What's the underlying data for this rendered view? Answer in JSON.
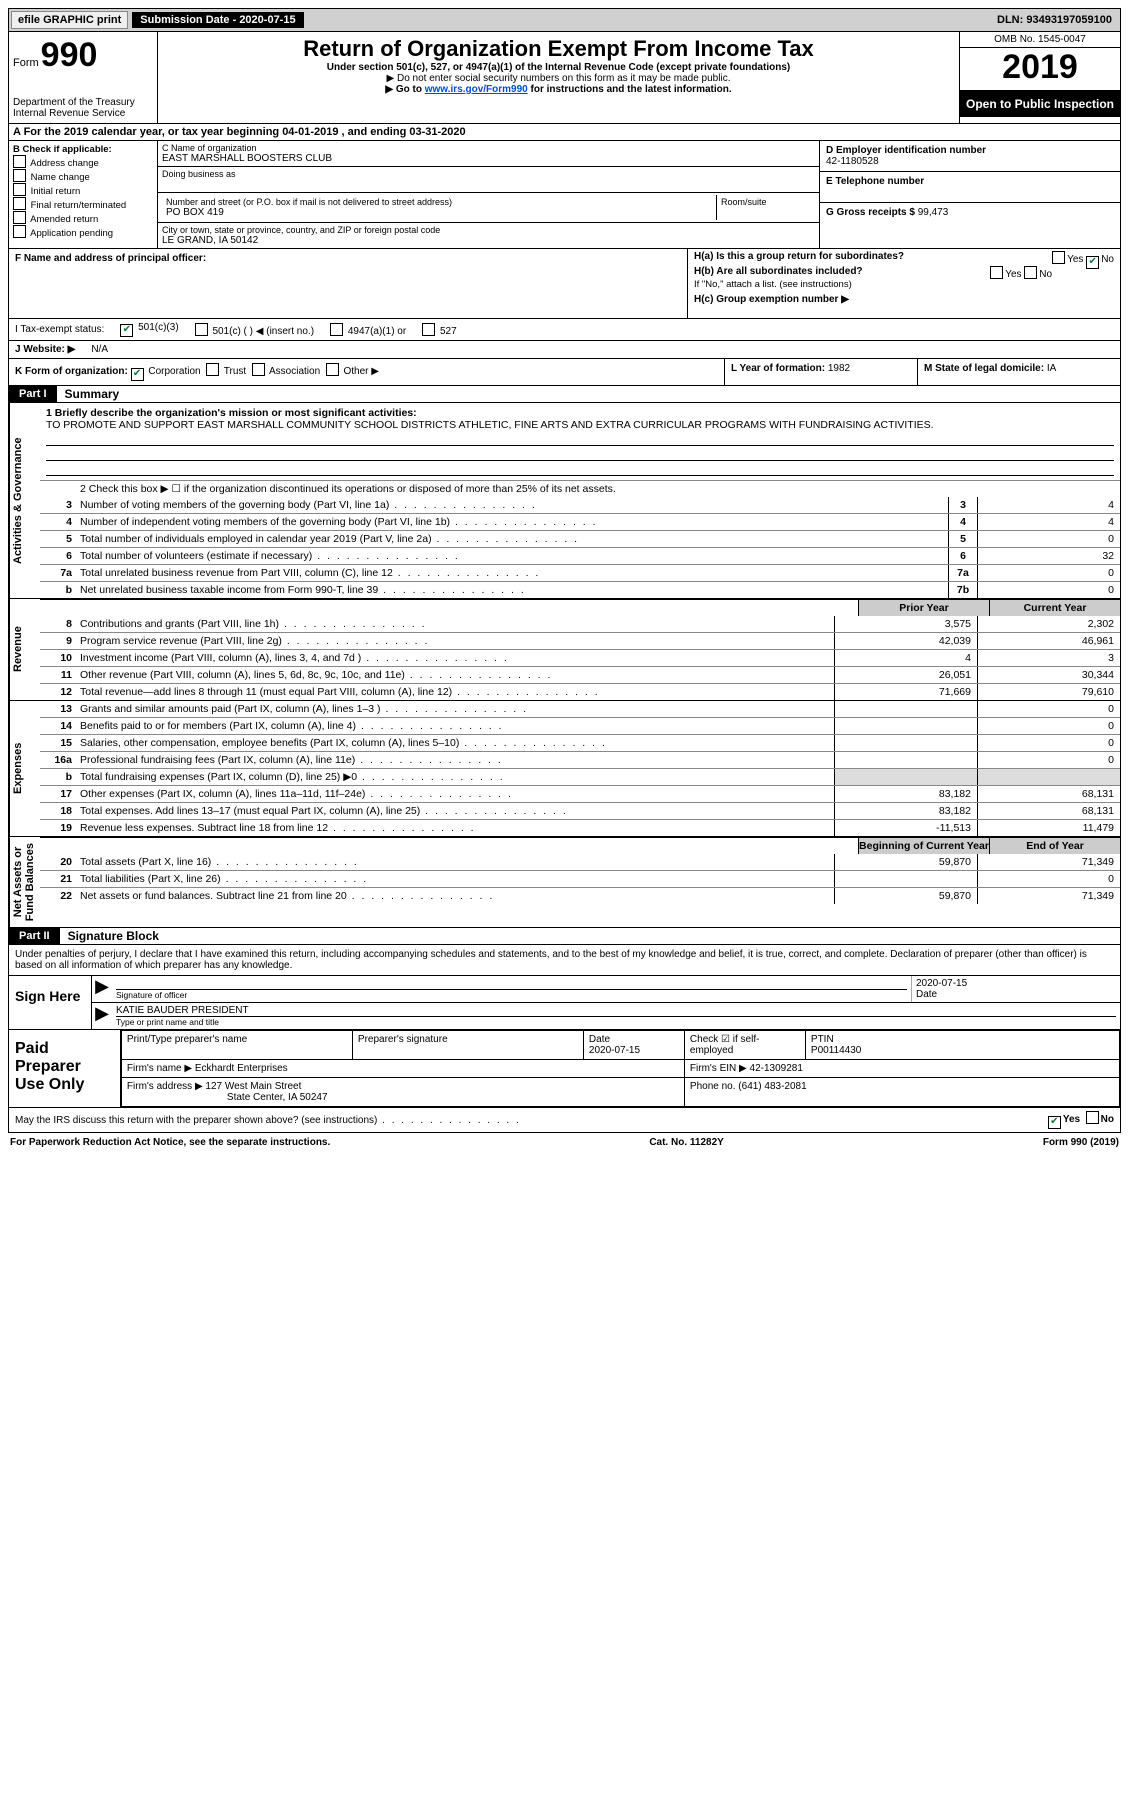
{
  "colors": {
    "accent_green": "#0a7a3a",
    "part_bg": "#000000",
    "shade": "#dddddd",
    "link": "#004bd8"
  },
  "topbar": {
    "efile": "efile GRAPHIC print",
    "submission_label": "Submission Date - 2020-07-15",
    "dln": "DLN: 93493197059100"
  },
  "header": {
    "form_word": "Form",
    "form_num": "990",
    "dept": "Department of the Treasury\nInternal Revenue Service",
    "title": "Return of Organization Exempt From Income Tax",
    "sub1": "Under section 501(c), 527, or 4947(a)(1) of the Internal Revenue Code (except private foundations)",
    "sub2": "▶ Do not enter social security numbers on this form as it may be made public.",
    "sub3_pre": "▶ Go to ",
    "sub3_link": "www.irs.gov/Form990",
    "sub3_post": " for instructions and the latest information.",
    "omb": "OMB No. 1545-0047",
    "year": "2019",
    "open": "Open to Public Inspection"
  },
  "a_line": "A For the 2019 calendar year, or tax year beginning 04-01-2019    , and ending 03-31-2020",
  "b": {
    "label": "B Check if applicable:",
    "items": [
      "Address change",
      "Name change",
      "Initial return",
      "Final return/terminated",
      "Amended return",
      "Application pending"
    ]
  },
  "c": {
    "name_label": "C Name of organization",
    "name": "EAST MARSHALL BOOSTERS CLUB",
    "dba_label": "Doing business as",
    "street_label": "Number and street (or P.O. box if mail is not delivered to street address)",
    "room_label": "Room/suite",
    "street": "PO BOX 419",
    "city_label": "City or town, state or province, country, and ZIP or foreign postal code",
    "city": "LE GRAND, IA  50142"
  },
  "d": {
    "label": "D Employer identification number",
    "value": "42-1180528"
  },
  "e": {
    "label": "E Telephone number",
    "value": ""
  },
  "g": {
    "label": "G Gross receipts $",
    "value": "99,473"
  },
  "f": {
    "label": "F  Name and address of principal officer:"
  },
  "h": {
    "a": "H(a)  Is this a group return for subordinates?",
    "a_yes": "Yes",
    "a_no": "No",
    "b": "H(b)  Are all subordinates included?",
    "b_yes": "Yes",
    "b_no": "No",
    "note": "If \"No,\" attach a list. (see instructions)",
    "c": "H(c)  Group exemption number ▶"
  },
  "i": {
    "label": "I  Tax-exempt status:",
    "o1": "501(c)(3)",
    "o2": "501(c) (   ) ◀ (insert no.)",
    "o3": "4947(a)(1) or",
    "o4": "527"
  },
  "j": {
    "label": "J  Website: ▶",
    "value": "N/A"
  },
  "k": {
    "label": "K Form of organization:",
    "o1": "Corporation",
    "o2": "Trust",
    "o3": "Association",
    "o4": "Other ▶"
  },
  "l": {
    "label": "L Year of formation:",
    "value": "1982"
  },
  "m": {
    "label": "M State of legal domicile:",
    "value": "IA"
  },
  "part1": {
    "bar": "Part I",
    "title": "Summary",
    "l1_label": "1  Briefly describe the organization's mission or most significant activities:",
    "l1_text": "TO PROMOTE AND SUPPORT EAST MARSHALL COMMUNITY SCHOOL DISTRICTS ATHLETIC, FINE ARTS AND EXTRA CURRICULAR PROGRAMS WITH FUNDRAISING ACTIVITIES.",
    "l2": "2  Check this box ▶ ☐  if the organization discontinued its operations or disposed of more than 25% of its net assets.",
    "lines_ag": [
      {
        "n": "3",
        "t": "Number of voting members of the governing body (Part VI, line 1a)",
        "box": "3",
        "v": "4"
      },
      {
        "n": "4",
        "t": "Number of independent voting members of the governing body (Part VI, line 1b)",
        "box": "4",
        "v": "4"
      },
      {
        "n": "5",
        "t": "Total number of individuals employed in calendar year 2019 (Part V, line 2a)",
        "box": "5",
        "v": "0"
      },
      {
        "n": "6",
        "t": "Total number of volunteers (estimate if necessary)",
        "box": "6",
        "v": "32"
      },
      {
        "n": "7a",
        "t": "Total unrelated business revenue from Part VIII, column (C), line 12",
        "box": "7a",
        "v": "0"
      },
      {
        "n": "b",
        "t": "Net unrelated business taxable income from Form 990-T, line 39",
        "box": "7b",
        "v": "0"
      }
    ],
    "prior": "Prior Year",
    "current": "Current Year",
    "rev": [
      {
        "n": "8",
        "t": "Contributions and grants (Part VIII, line 1h)",
        "p": "3,575",
        "c": "2,302"
      },
      {
        "n": "9",
        "t": "Program service revenue (Part VIII, line 2g)",
        "p": "42,039",
        "c": "46,961"
      },
      {
        "n": "10",
        "t": "Investment income (Part VIII, column (A), lines 3, 4, and 7d )",
        "p": "4",
        "c": "3"
      },
      {
        "n": "11",
        "t": "Other revenue (Part VIII, column (A), lines 5, 6d, 8c, 9c, 10c, and 11e)",
        "p": "26,051",
        "c": "30,344"
      },
      {
        "n": "12",
        "t": "Total revenue—add lines 8 through 11 (must equal Part VIII, column (A), line 12)",
        "p": "71,669",
        "c": "79,610"
      }
    ],
    "exp": [
      {
        "n": "13",
        "t": "Grants and similar amounts paid (Part IX, column (A), lines 1–3 )",
        "p": "",
        "c": "0"
      },
      {
        "n": "14",
        "t": "Benefits paid to or for members (Part IX, column (A), line 4)",
        "p": "",
        "c": "0"
      },
      {
        "n": "15",
        "t": "Salaries, other compensation, employee benefits (Part IX, column (A), lines 5–10)",
        "p": "",
        "c": "0"
      },
      {
        "n": "16a",
        "t": "Professional fundraising fees (Part IX, column (A), line 11e)",
        "p": "",
        "c": "0"
      },
      {
        "n": "b",
        "t": "Total fundraising expenses (Part IX, column (D), line 25) ▶0",
        "p": "shade",
        "c": "shade"
      },
      {
        "n": "17",
        "t": "Other expenses (Part IX, column (A), lines 11a–11d, 11f–24e)",
        "p": "83,182",
        "c": "68,131"
      },
      {
        "n": "18",
        "t": "Total expenses. Add lines 13–17 (must equal Part IX, column (A), line 25)",
        "p": "83,182",
        "c": "68,131"
      },
      {
        "n": "19",
        "t": "Revenue less expenses. Subtract line 18 from line 12",
        "p": "-11,513",
        "c": "11,479"
      }
    ],
    "bcy": "Beginning of Current Year",
    "eoy": "End of Year",
    "na": [
      {
        "n": "20",
        "t": "Total assets (Part X, line 16)",
        "p": "59,870",
        "c": "71,349"
      },
      {
        "n": "21",
        "t": "Total liabilities (Part X, line 26)",
        "p": "",
        "c": "0"
      },
      {
        "n": "22",
        "t": "Net assets or fund balances. Subtract line 21 from line 20",
        "p": "59,870",
        "c": "71,349"
      }
    ],
    "vlabels": {
      "ag": "Activities & Governance",
      "rev": "Revenue",
      "exp": "Expenses",
      "na": "Net Assets or\nFund Balances"
    }
  },
  "part2": {
    "bar": "Part II",
    "title": "Signature Block",
    "intro": "Under penalties of perjury, I declare that I have examined this return, including accompanying schedules and statements, and to the best of my knowledge and belief, it is true, correct, and complete. Declaration of preparer (other than officer) is based on all information of which preparer has any knowledge."
  },
  "sign": {
    "here": "Sign Here",
    "sig_label": "Signature of officer",
    "date_label": "Date",
    "date": "2020-07-15",
    "name": "KATIE BAUDER  PRESIDENT",
    "name_label": "Type or print name and title"
  },
  "prep": {
    "label": "Paid Preparer Use Only",
    "h1": "Print/Type preparer's name",
    "h2": "Preparer's signature",
    "h3": "Date",
    "h3v": "2020-07-15",
    "h4": "Check ☑ if self-employed",
    "h5": "PTIN",
    "h5v": "P00114430",
    "firm_label": "Firm's name   ▶",
    "firm": "Eckhardt Enterprises",
    "ein_label": "Firm's EIN ▶",
    "ein": "42-1309281",
    "addr_label": "Firm's address ▶",
    "addr1": "127 West Main Street",
    "addr2": "State Center, IA  50247",
    "phone_label": "Phone no.",
    "phone": "(641) 483-2081"
  },
  "discuss": {
    "q": "May the IRS discuss this return with the preparer shown above? (see instructions)",
    "yes": "Yes",
    "no": "No"
  },
  "footer": {
    "l": "For Paperwork Reduction Act Notice, see the separate instructions.",
    "c": "Cat. No. 11282Y",
    "r": "Form 990 (2019)"
  }
}
